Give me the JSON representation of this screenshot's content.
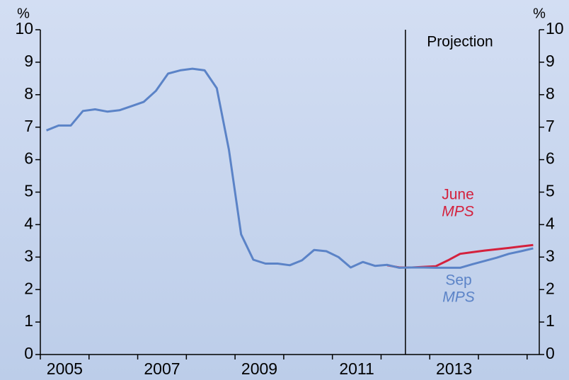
{
  "chart_data": {
    "type": "line",
    "y_unit": "%",
    "y2_unit": "%",
    "x": [
      2005.125,
      2005.375,
      2005.625,
      2005.875,
      2006.125,
      2006.375,
      2006.625,
      2006.875,
      2007.125,
      2007.375,
      2007.625,
      2007.875,
      2008.125,
      2008.375,
      2008.625,
      2008.875,
      2009.125,
      2009.375,
      2009.625,
      2009.875,
      2010.125,
      2010.375,
      2010.625,
      2010.875,
      2011.125,
      2011.375,
      2011.625,
      2011.875,
      2012.125,
      2012.375,
      2012.625,
      2012.875,
      2013.125,
      2013.375,
      2013.625,
      2013.875,
      2014.125,
      2014.375,
      2014.625,
      2014.875,
      2015.125
    ],
    "series": [
      {
        "name": "June",
        "subname": "MPS",
        "color": "#d4213d",
        "values": [
          null,
          null,
          null,
          null,
          null,
          null,
          null,
          null,
          null,
          null,
          null,
          null,
          null,
          null,
          null,
          null,
          null,
          null,
          null,
          null,
          null,
          null,
          null,
          null,
          null,
          null,
          null,
          null,
          2.75,
          2.68,
          2.68,
          2.7,
          2.72,
          2.9,
          3.1,
          3.15,
          3.2,
          3.24,
          3.28,
          3.33,
          3.37
        ]
      },
      {
        "name": "Sep",
        "subname": "MPS",
        "color": "#5b83c7",
        "values": [
          6.9,
          7.05,
          7.05,
          7.5,
          7.55,
          7.48,
          7.52,
          7.65,
          7.78,
          8.12,
          8.65,
          8.75,
          8.8,
          8.75,
          8.2,
          6.3,
          3.7,
          2.92,
          2.8,
          2.8,
          2.75,
          2.9,
          3.22,
          3.18,
          3.0,
          2.68,
          2.85,
          2.73,
          2.76,
          2.67,
          2.68,
          2.68,
          2.67,
          2.67,
          2.67,
          2.78,
          2.88,
          2.98,
          3.1,
          3.18,
          3.27
        ]
      }
    ],
    "xlim": [
      2005,
      2015.25
    ],
    "xticks": [
      2005,
      2006,
      2007,
      2008,
      2009,
      2010,
      2011,
      2012,
      2013,
      2014,
      2015
    ],
    "xlabels": [
      2005,
      2007,
      2009,
      2011,
      2013
    ],
    "ylim": [
      0,
      10
    ],
    "yticks": [
      0,
      1,
      2,
      3,
      4,
      5,
      6,
      7,
      8,
      9,
      10
    ],
    "y2lim": [
      0,
      10
    ],
    "y2ticks": [
      0,
      1,
      2,
      3,
      4,
      5,
      6,
      7,
      8,
      9,
      10
    ],
    "projection": {
      "x": 2012.5,
      "label": "Projection"
    }
  }
}
